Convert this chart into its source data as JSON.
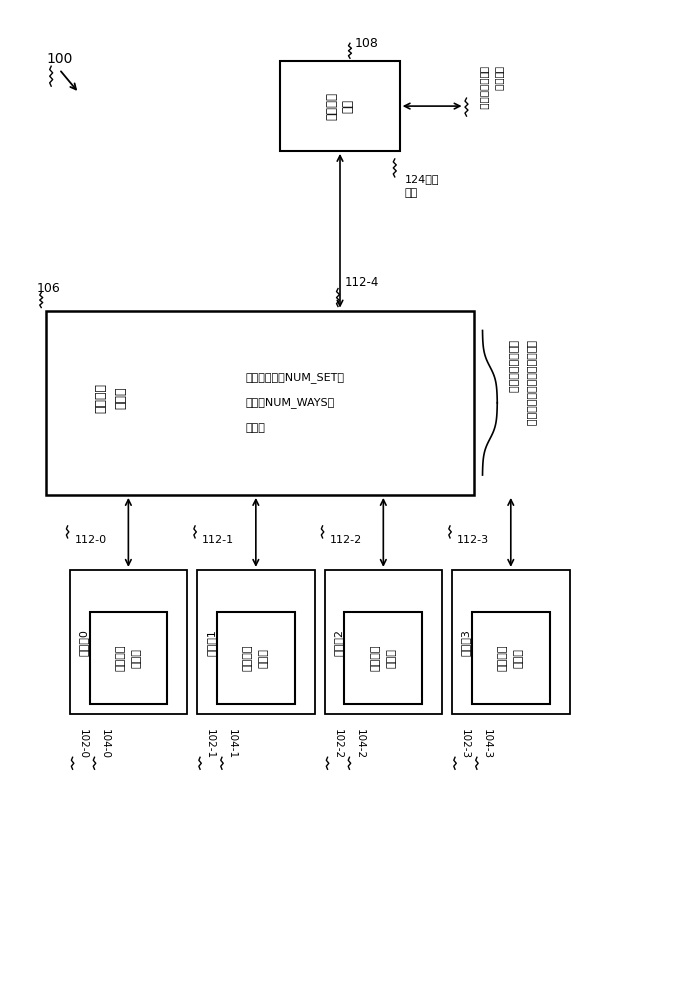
{
  "bg_color": "#ffffff",
  "fig_width": 6.79,
  "fig_height": 10.0,
  "label_100": "100",
  "label_106": "106",
  "label_108": "108",
  "label_112_4": "112-4",
  "label_124_line1": "124系统",
  "label_124_line2": "总线",
  "label_to_system_line1": "至系统存储器与",
  "label_to_system_line2": "周边装置",
  "bus_unit_line1": "总线接口",
  "bus_unit_line2": "单元",
  "llc_line1": "末级快取",
  "llc_line2": "存储器",
  "llc_sub_line1": "（集合相联，NUM_SET个",
  "llc_sub_line2": "集合，NUM_WAYS路",
  "llc_sub_line3": "关联）",
  "bus_labels": [
    "112-0",
    "112-1",
    "112-2",
    "112-3"
  ],
  "proc_labels": [
    "102-0",
    "102-1",
    "102-2",
    "102-3"
  ],
  "cache_id_labels": [
    "104-0",
    "104-1",
    "104-2",
    "104-3"
  ],
  "core_texts": [
    "处理核0",
    "处理核1",
    "处理核2",
    "处理核3"
  ],
  "cache_text_line1": "私有快取",
  "cache_text_line2": "存储器",
  "ann_line1": "包含快取列地址，",
  "ann_line2": "其中有选择所属集合的索引値"
}
